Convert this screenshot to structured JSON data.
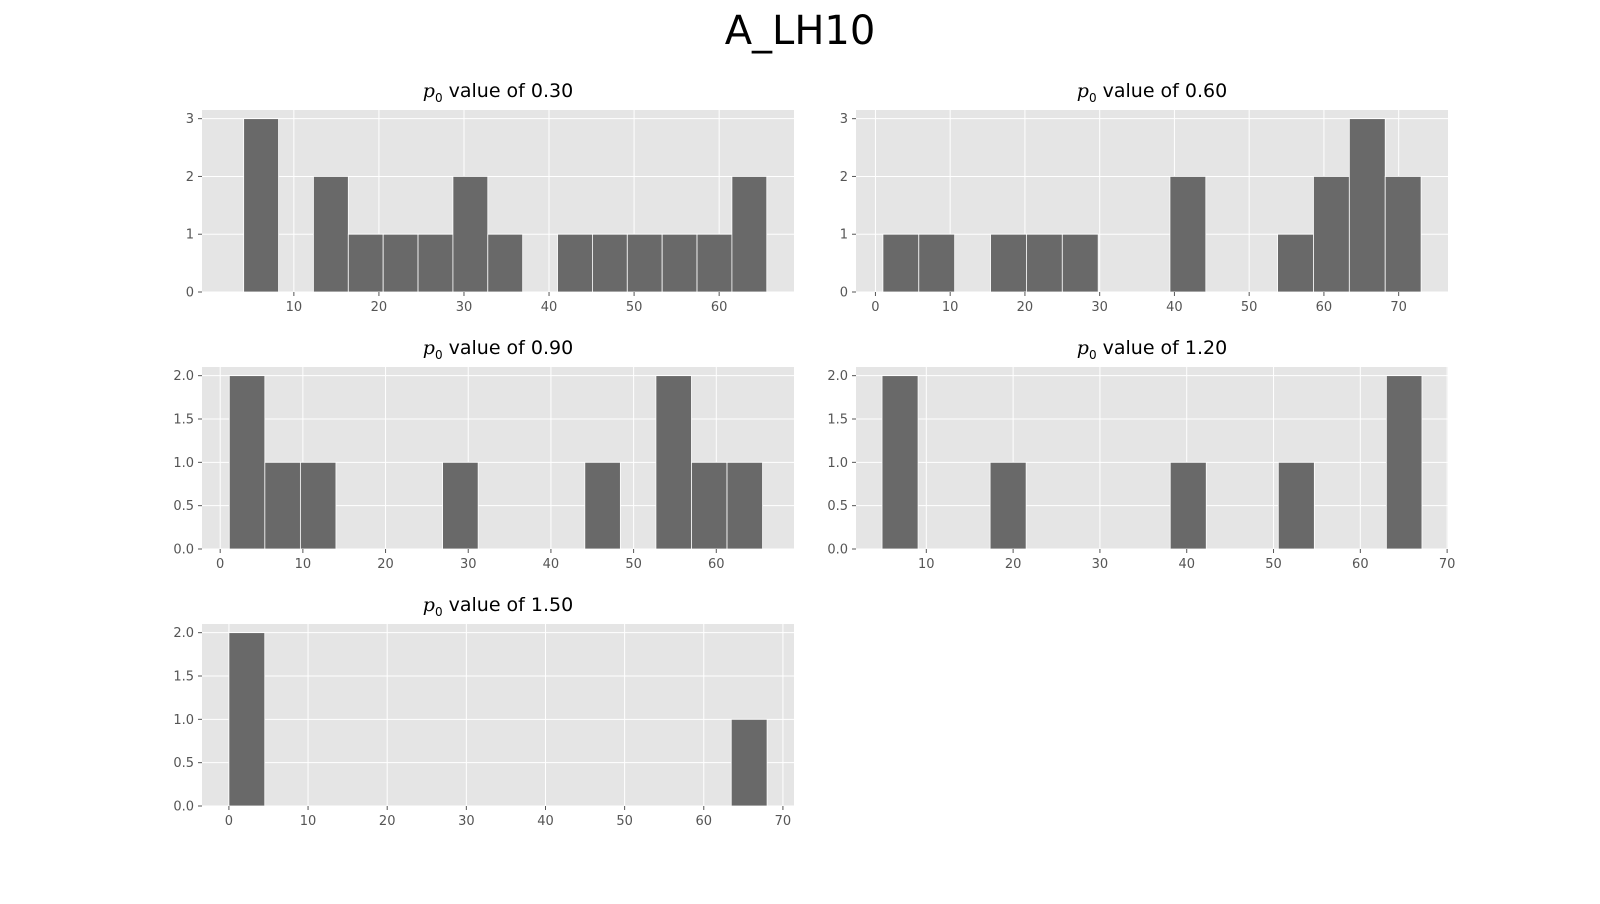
{
  "figure": {
    "title": "A_LH10"
  },
  "style": {
    "panel_bg": "#e5e5e5",
    "grid": "#ffffff",
    "bar": "#696969",
    "tick_text": "#555555"
  },
  "chart_data": [
    {
      "type": "bar",
      "title": "p0 value of 0.30",
      "title_symbol": "p",
      "title_subscript": "0",
      "title_text": " value of 0.30",
      "xlim": [
        -0.8,
        68.8
      ],
      "ylim": [
        0,
        3.15
      ],
      "xticks": [
        10,
        20,
        30,
        40,
        50,
        60
      ],
      "yticks": [
        0,
        1,
        2,
        3
      ],
      "bin_edges": [
        4.1,
        8.2,
        12.3,
        16.4,
        20.5,
        24.6,
        28.7,
        32.8,
        36.9,
        41.0,
        45.1,
        49.2,
        53.3,
        57.4,
        61.5,
        65.6
      ],
      "counts": [
        3,
        0,
        2,
        1,
        1,
        1,
        2,
        1,
        0,
        1,
        1,
        1,
        1,
        1,
        2
      ]
    },
    {
      "type": "bar",
      "title": "p0 value of 0.60",
      "title_symbol": "p",
      "title_subscript": "0",
      "title_text": " value of 0.60",
      "xlim": [
        -2.6,
        76.6
      ],
      "ylim": [
        0,
        3.15
      ],
      "xticks": [
        0,
        10,
        20,
        30,
        40,
        50,
        60,
        70
      ],
      "yticks": [
        0,
        1,
        2,
        3
      ],
      "bin_edges": [
        1.0,
        5.8,
        10.6,
        15.4,
        20.2,
        25.0,
        29.8,
        34.6,
        39.4,
        44.2,
        49.0,
        53.8,
        58.6,
        63.4,
        68.2,
        73.0
      ],
      "counts": [
        1,
        1,
        0,
        1,
        1,
        1,
        0,
        0,
        2,
        0,
        0,
        1,
        2,
        3,
        2
      ]
    },
    {
      "type": "bar",
      "title": "p0 value of 0.90",
      "title_symbol": "p",
      "title_subscript": "0",
      "title_text": " value of 0.90",
      "xlia": null,
      "xlim": [
        -2.2,
        69.4
      ],
      "ylim": [
        0,
        2.1
      ],
      "xticks": [
        0,
        10,
        20,
        30,
        40,
        50,
        60
      ],
      "yticks": [
        0,
        0.5,
        1.0,
        1.5,
        2.0
      ],
      "ytick_labels": [
        "0.0",
        "0.5",
        "1.0",
        "1.5",
        "2.0"
      ],
      "bin_edges": [
        1.1,
        5.4,
        9.7,
        14.0,
        18.3,
        22.6,
        26.9,
        31.2,
        35.5,
        39.8,
        44.1,
        48.4,
        52.7,
        57.0,
        61.3,
        65.6
      ],
      "counts": [
        2,
        1,
        1,
        0,
        0,
        0,
        1,
        0,
        0,
        0,
        1,
        0,
        2,
        1,
        1
      ]
    },
    {
      "type": "bar",
      "title": "p0 value of 1.20",
      "title_symbol": "p",
      "title_subscript": "0",
      "title_text": " value of 1.20",
      "xlim": [
        1.9,
        70.1
      ],
      "ylim": [
        0,
        2.1
      ],
      "xticks": [
        10,
        20,
        30,
        40,
        50,
        60,
        70
      ],
      "yticks": [
        0,
        0.5,
        1.0,
        1.5,
        2.0
      ],
      "ytick_labels": [
        "0.0",
        "0.5",
        "1.0",
        "1.5",
        "2.0"
      ],
      "bin_edges": [
        4.9,
        9.05,
        13.2,
        17.35,
        21.5,
        25.65,
        29.8,
        33.95,
        38.1,
        42.25,
        46.4,
        50.55,
        54.7,
        58.85,
        63.0,
        67.1
      ],
      "counts": [
        2,
        0,
        0,
        1,
        0,
        0,
        0,
        0,
        1,
        0,
        0,
        1,
        0,
        0,
        2
      ]
    },
    {
      "type": "bar",
      "title": "p0 value of 1.50",
      "title_symbol": "p",
      "title_subscript": "0",
      "title_text": " value of 1.50",
      "xlim": [
        -3.4,
        71.4
      ],
      "ylim": [
        0,
        2.1
      ],
      "xticks": [
        0,
        10,
        20,
        30,
        40,
        50,
        60,
        70
      ],
      "yticks": [
        0,
        0.5,
        1.0,
        1.5,
        2.0
      ],
      "ytick_labels": [
        "0.0",
        "0.5",
        "1.0",
        "1.5",
        "2.0"
      ],
      "bin_edges": [
        0.0,
        4.53,
        9.07,
        13.6,
        18.13,
        22.67,
        27.2,
        31.73,
        36.27,
        40.8,
        45.33,
        49.87,
        54.4,
        58.93,
        63.47,
        68.0
      ],
      "counts": [
        2,
        0,
        0,
        0,
        0,
        0,
        0,
        0,
        0,
        0,
        0,
        0,
        0,
        0,
        1
      ]
    }
  ]
}
